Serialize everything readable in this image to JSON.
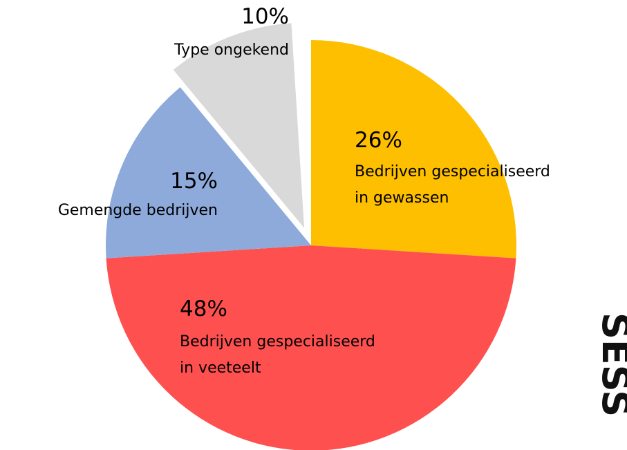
{
  "chart_data": {
    "type": "pie",
    "categories": [
      "Bedrijven gespecialiseerd\nin gewassen",
      "Bedrijven gespecialiseerd\nin veeteelt",
      "Gemengde bedrijven",
      "Type ongekend"
    ],
    "values": [
      26,
      48,
      15,
      10
    ],
    "value_labels": [
      "26%",
      "48%",
      "15%",
      "10%"
    ],
    "colors": [
      "#fdbf00",
      "#ff5050",
      "#8eaadb",
      "#d9d9d9"
    ],
    "exploded": [
      false,
      false,
      false,
      true
    ]
  },
  "side_text": "SESS"
}
